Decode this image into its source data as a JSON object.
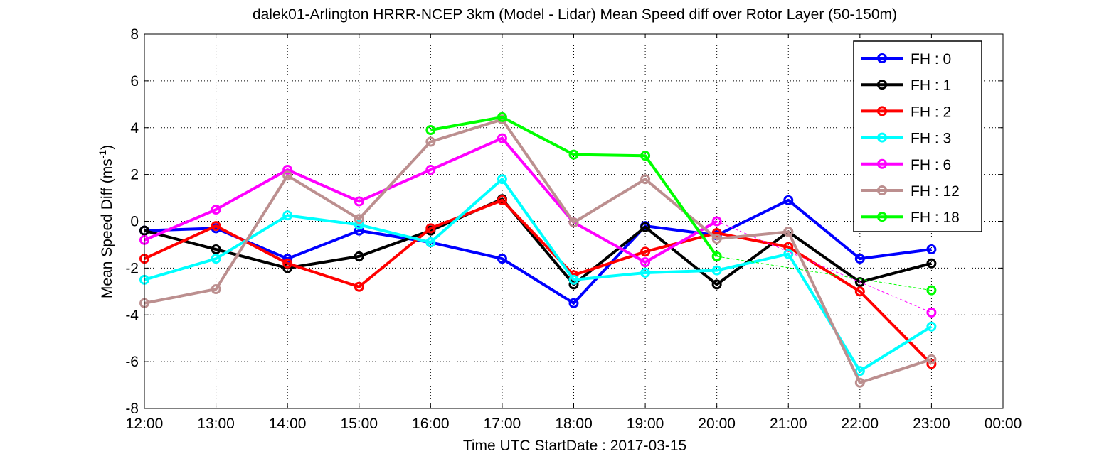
{
  "chart_data": {
    "type": "line",
    "title": "dalek01-Arlington HRRR-NCEP 3km (Model - Lidar) Mean Speed diff over Rotor Layer (50-150m)",
    "xlabel": "Time UTC    StartDate : 2017-03-15",
    "ylabel_main": "Mean Speed Diff (ms",
    "ylabel_sup": "-1",
    "ylabel_close": ")",
    "x_ticks": [
      "12:00",
      "13:00",
      "14:00",
      "15:00",
      "16:00",
      "17:00",
      "18:00",
      "19:00",
      "20:00",
      "21:00",
      "22:00",
      "23:00",
      "00:00"
    ],
    "y_ticks": [
      "8",
      "6",
      "4",
      "2",
      "0",
      "-2",
      "-4",
      "-6",
      "-8"
    ],
    "xlim": [
      12,
      24
    ],
    "ylim": [
      -8,
      8
    ],
    "grid": true,
    "legend_position": "top-right",
    "series": [
      {
        "name": "FH : 0",
        "color": "#0000ff",
        "points": [
          [
            12,
            -0.4
          ],
          [
            13,
            -0.3
          ],
          [
            14,
            -1.6
          ],
          [
            15,
            -0.4
          ],
          [
            16,
            -0.9
          ],
          [
            17,
            -1.6
          ],
          [
            18,
            -3.5
          ],
          [
            19,
            -0.2
          ],
          [
            20,
            -0.6
          ],
          [
            21,
            0.9
          ],
          [
            22,
            -1.6
          ],
          [
            23,
            -1.2
          ]
        ]
      },
      {
        "name": "FH : 1",
        "color": "#000000",
        "points": [
          [
            12,
            -0.4
          ],
          [
            13,
            -1.2
          ],
          [
            14,
            -2.0
          ],
          [
            15,
            -1.5
          ],
          [
            16,
            -0.4
          ],
          [
            17,
            0.95
          ],
          [
            18,
            -2.7
          ],
          [
            19,
            -0.25
          ],
          [
            20,
            -2.7
          ],
          [
            21,
            -0.45
          ],
          [
            22,
            -2.6
          ],
          [
            23,
            -1.8
          ]
        ]
      },
      {
        "name": "FH : 2",
        "color": "#ff0000",
        "points": [
          [
            12,
            -1.6
          ],
          [
            13,
            -0.2
          ],
          [
            14,
            -1.8
          ],
          [
            15,
            -2.8
          ],
          [
            16,
            -0.3
          ],
          [
            17,
            0.9
          ],
          [
            18,
            -2.3
          ],
          [
            19,
            -1.3
          ],
          [
            20,
            -0.5
          ],
          [
            21,
            -1.1
          ],
          [
            22,
            -3.0
          ],
          [
            23,
            -6.1
          ]
        ]
      },
      {
        "name": "FH : 3",
        "color": "#00ffff",
        "points": [
          [
            12,
            -2.5
          ],
          [
            13,
            -1.6
          ],
          [
            14,
            0.25
          ],
          [
            15,
            -0.15
          ],
          [
            16,
            -0.9
          ],
          [
            17,
            1.8
          ],
          [
            18,
            -2.5
          ],
          [
            19,
            -2.2
          ],
          [
            20,
            -2.1
          ],
          [
            21,
            -1.4
          ],
          [
            22,
            -6.4
          ],
          [
            23,
            -4.5
          ]
        ]
      },
      {
        "name": "FH : 6",
        "color": "#ff00ff",
        "points": [
          [
            12,
            -0.8
          ],
          [
            13,
            0.5
          ],
          [
            14,
            2.2
          ],
          [
            15,
            0.85
          ],
          [
            16,
            2.2
          ],
          [
            17,
            3.55
          ],
          [
            18,
            -0.05
          ],
          [
            19,
            -1.75
          ],
          [
            20,
            0.0
          ]
        ],
        "dashed_to": [
          23,
          -3.9
        ]
      },
      {
        "name": "FH : 12",
        "color": "#bc8f8f",
        "points": [
          [
            12,
            -3.5
          ],
          [
            13,
            -2.9
          ],
          [
            14,
            1.95
          ],
          [
            15,
            0.1
          ],
          [
            16,
            3.4
          ],
          [
            17,
            4.35
          ],
          [
            18,
            -0.05
          ],
          [
            19,
            1.8
          ],
          [
            20,
            -0.75
          ],
          [
            21,
            -0.45
          ],
          [
            22,
            -6.9
          ],
          [
            23,
            -5.9
          ]
        ]
      },
      {
        "name": "FH : 18",
        "color": "#00ff00",
        "points": [
          [
            16,
            3.9
          ],
          [
            17,
            4.45
          ],
          [
            18,
            2.85
          ],
          [
            19,
            2.8
          ],
          [
            20,
            -1.5
          ]
        ],
        "dashed_to": [
          23,
          -2.95
        ]
      }
    ]
  }
}
